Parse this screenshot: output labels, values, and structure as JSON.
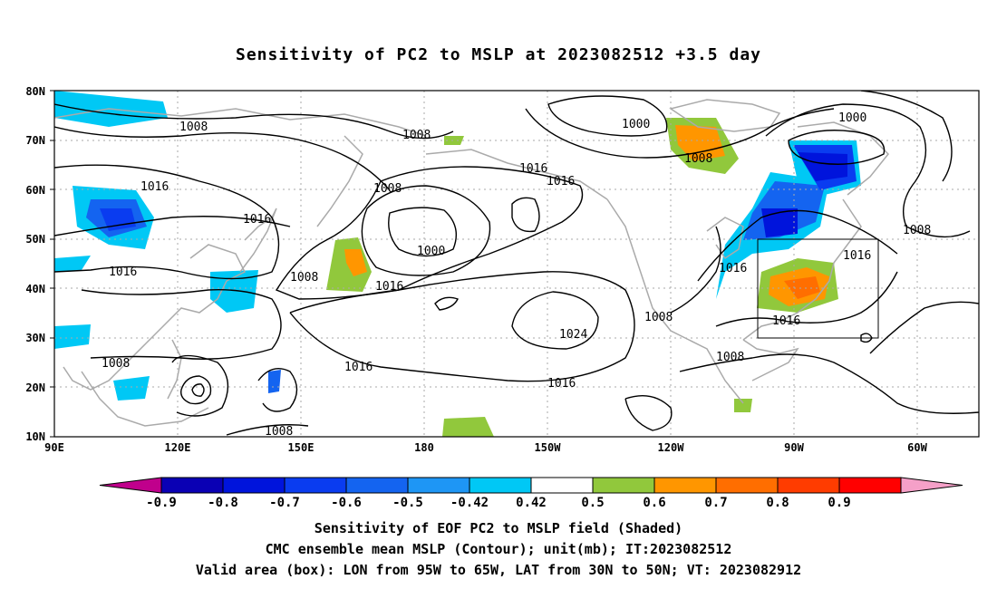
{
  "title": "Sensitivity of PC2 to MSLP at 2023082512 +3.5 day",
  "map": {
    "lat_ticks": [
      "80N",
      "70N",
      "60N",
      "50N",
      "40N",
      "30N",
      "20N",
      "10N"
    ],
    "lon_ticks": [
      "90E",
      "120E",
      "150E",
      "180",
      "150W",
      "120W",
      "90W",
      "60W"
    ],
    "extent": {
      "lon_min": 90,
      "lon_max": 315,
      "lat_min": 10,
      "lat_max": 80
    },
    "contour_labels": [
      "1008",
      "1008",
      "1016",
      "1016",
      "1016",
      "1016",
      "1016",
      "1008",
      "1000",
      "1008",
      "1016",
      "1016",
      "1008",
      "1016",
      "1024",
      "1016",
      "1008",
      "1008",
      "1000",
      "1008",
      "1000",
      "1008",
      "1016",
      "1016",
      "1008",
      "1008"
    ],
    "colors": {
      "coast": "#aaaaaa",
      "contour": "#000000",
      "grid": "#aaaaaa"
    }
  },
  "colorbar": {
    "labels": [
      "-0.9",
      "-0.8",
      "-0.7",
      "-0.6",
      "-0.5",
      "-0.42",
      "0.42",
      "0.5",
      "0.6",
      "0.7",
      "0.8",
      "0.9"
    ],
    "colors": [
      "#c0008c",
      "#0a00b4",
      "#0014dc",
      "#0a3cf0",
      "#1464f0",
      "#1e96f5",
      "#00c8f5",
      "#ffffff",
      "#91c83c",
      "#ff9600",
      "#ff6e00",
      "#ff3c00",
      "#ff0000",
      "#f5a0c8"
    ]
  },
  "caption": {
    "line1": "Sensitivity of EOF PC2 to MSLP field (Shaded)",
    "line2": "CMC ensemble mean MSLP (Contour); unit(mb); IT:2023082512",
    "line3": "Valid area (box): LON from 95W to 65W, LAT from 30N to 50N; VT: 2023082912"
  }
}
